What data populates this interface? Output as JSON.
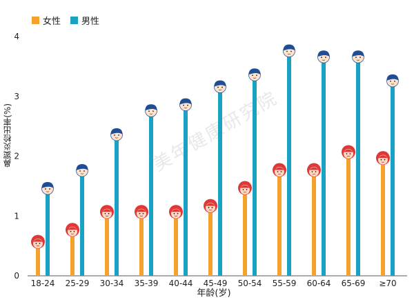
{
  "chart_data": {
    "type": "bar",
    "title": "",
    "xlabel": "年龄(岁)",
    "ylabel": "鼻窦炎检出率(%)",
    "ylim": [
      0,
      4
    ],
    "yticks": [
      0,
      1,
      2,
      3,
      4
    ],
    "legend_position": "top-left",
    "categories": [
      "18-24",
      "25-29",
      "30-34",
      "35-39",
      "40-44",
      "45-49",
      "50-54",
      "55-59",
      "60-64",
      "65-69",
      "≥70"
    ],
    "series": [
      {
        "name": "女性",
        "color": "#F4A12D",
        "values": [
          0.5,
          0.7,
          1.0,
          1.0,
          1.0,
          1.1,
          1.4,
          1.7,
          1.7,
          2.0,
          1.9
        ]
      },
      {
        "name": "男性",
        "color": "#1AA2C2",
        "values": [
          1.4,
          1.7,
          2.3,
          2.7,
          2.8,
          3.1,
          3.3,
          3.7,
          3.6,
          3.6,
          3.2
        ]
      }
    ]
  },
  "watermark": "美年健康研究院"
}
